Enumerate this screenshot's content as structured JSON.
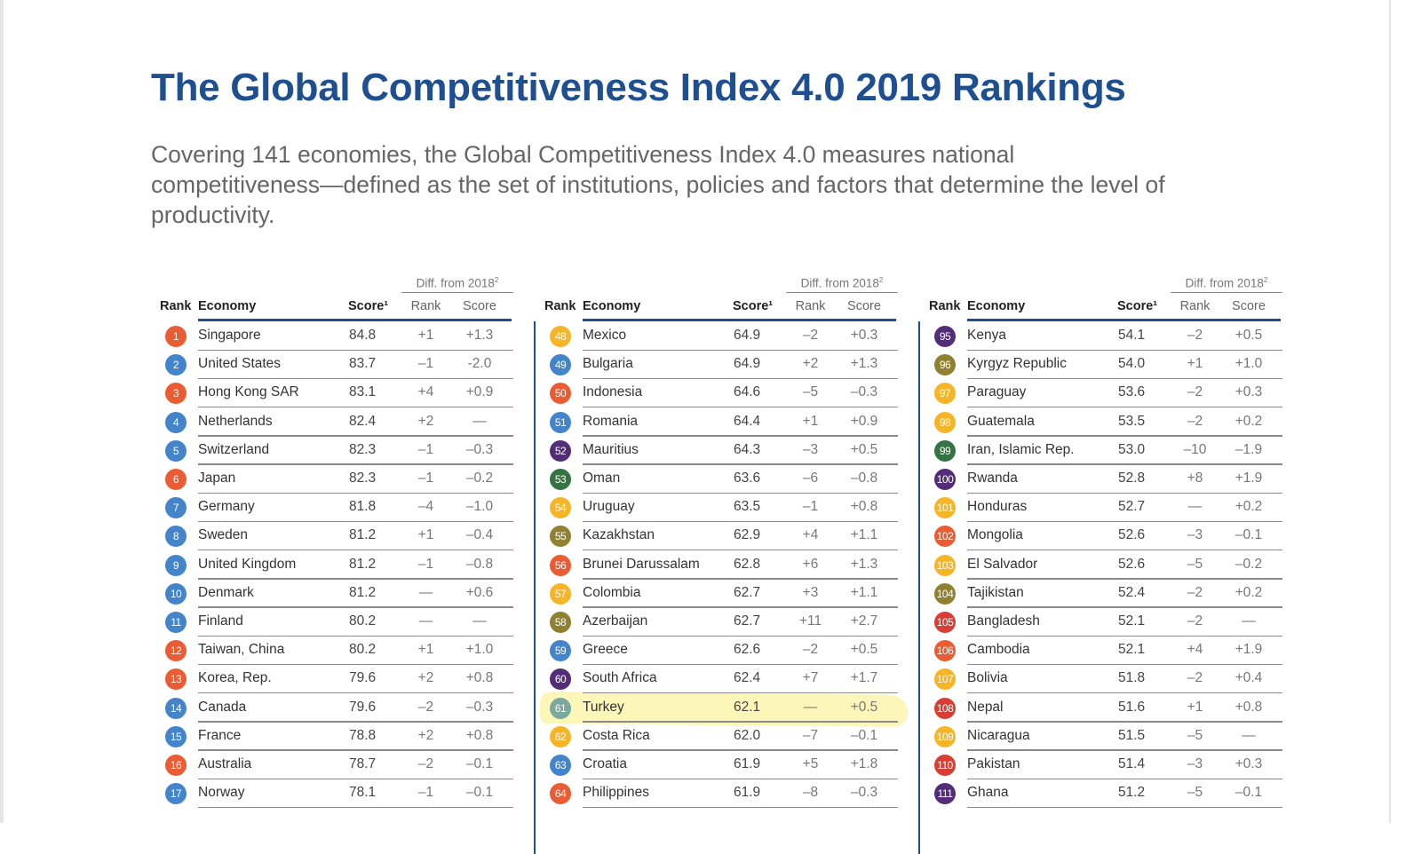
{
  "title": "The Global Competitiveness Index 4.0 2019 Rankings",
  "intro": "Covering 141 economies, the Global Competitiveness Index 4.0 measures national competitiveness—defined as the set of institutions, policies and factors that determine the level of productivity.",
  "headers": {
    "diff": "Diff. from 2018",
    "diff_sup": "2",
    "rank": "Rank",
    "economy": "Economy",
    "score": "Score¹",
    "diff_rank": "Rank",
    "diff_score": "Score"
  },
  "palette": {
    "orange": "#e8542a",
    "blue": "#3b7ec8",
    "yellow": "#f6b21b",
    "purple": "#4a2270",
    "green": "#2b6d38",
    "olive": "#8a7b26",
    "red": "#d8342a",
    "teal": "#76a49c",
    "title": "#1d4f91",
    "highlight": "#fbf3a2"
  },
  "highlighted_economy": "Turkey",
  "columns": [
    [
      {
        "rank": "1",
        "economy": "Singapore",
        "score": "84.8",
        "rank_diff": "+1",
        "score_diff": "+1.3",
        "color": "orange"
      },
      {
        "rank": "2",
        "economy": "United States",
        "score": "83.7",
        "rank_diff": "–1",
        "score_diff": "-2.0",
        "color": "blue"
      },
      {
        "rank": "3",
        "economy": "Hong Kong SAR",
        "score": "83.1",
        "rank_diff": "+4",
        "score_diff": "+0.9",
        "color": "orange"
      },
      {
        "rank": "4",
        "economy": "Netherlands",
        "score": "82.4",
        "rank_diff": "+2",
        "score_diff": "—",
        "color": "blue"
      },
      {
        "rank": "5",
        "economy": "Switzerland",
        "score": "82.3",
        "rank_diff": "–1",
        "score_diff": "–0.3",
        "color": "blue"
      },
      {
        "rank": "6",
        "economy": "Japan",
        "score": "82.3",
        "rank_diff": "–1",
        "score_diff": "–0.2",
        "color": "orange"
      },
      {
        "rank": "7",
        "economy": "Germany",
        "score": "81.8",
        "rank_diff": "–4",
        "score_diff": "–1.0",
        "color": "blue"
      },
      {
        "rank": "8",
        "economy": "Sweden",
        "score": "81.2",
        "rank_diff": "+1",
        "score_diff": "–0.4",
        "color": "blue"
      },
      {
        "rank": "9",
        "economy": "United Kingdom",
        "score": "81.2",
        "rank_diff": "–1",
        "score_diff": "–0.8",
        "color": "blue"
      },
      {
        "rank": "10",
        "economy": "Denmark",
        "score": "81.2",
        "rank_diff": "—",
        "score_diff": "+0.6",
        "color": "blue"
      },
      {
        "rank": "11",
        "economy": "Finland",
        "score": "80.2",
        "rank_diff": "—",
        "score_diff": "—",
        "color": "blue"
      },
      {
        "rank": "12",
        "economy": "Taiwan, China",
        "score": "80.2",
        "rank_diff": "+1",
        "score_diff": "+1.0",
        "color": "orange"
      },
      {
        "rank": "13",
        "economy": "Korea, Rep.",
        "score": "79.6",
        "rank_diff": "+2",
        "score_diff": "+0.8",
        "color": "orange"
      },
      {
        "rank": "14",
        "economy": "Canada",
        "score": "79.6",
        "rank_diff": "–2",
        "score_diff": "–0.3",
        "color": "blue"
      },
      {
        "rank": "15",
        "economy": "France",
        "score": "78.8",
        "rank_diff": "+2",
        "score_diff": "+0.8",
        "color": "blue"
      },
      {
        "rank": "16",
        "economy": "Australia",
        "score": "78.7",
        "rank_diff": "–2",
        "score_diff": "–0.1",
        "color": "orange"
      },
      {
        "rank": "17",
        "economy": "Norway",
        "score": "78.1",
        "rank_diff": "–1",
        "score_diff": "–0.1",
        "color": "blue"
      }
    ],
    [
      {
        "rank": "48",
        "economy": "Mexico",
        "score": "64.9",
        "rank_diff": "–2",
        "score_diff": "+0.3",
        "color": "yellow"
      },
      {
        "rank": "49",
        "economy": "Bulgaria",
        "score": "64.9",
        "rank_diff": "+2",
        "score_diff": "+1.3",
        "color": "blue"
      },
      {
        "rank": "50",
        "economy": "Indonesia",
        "score": "64.6",
        "rank_diff": "–5",
        "score_diff": "–0.3",
        "color": "orange"
      },
      {
        "rank": "51",
        "economy": "Romania",
        "score": "64.4",
        "rank_diff": "+1",
        "score_diff": "+0.9",
        "color": "blue"
      },
      {
        "rank": "52",
        "economy": "Mauritius",
        "score": "64.3",
        "rank_diff": "–3",
        "score_diff": "+0.5",
        "color": "purple"
      },
      {
        "rank": "53",
        "economy": "Oman",
        "score": "63.6",
        "rank_diff": "–6",
        "score_diff": "–0.8",
        "color": "green"
      },
      {
        "rank": "54",
        "economy": "Uruguay",
        "score": "63.5",
        "rank_diff": "–1",
        "score_diff": "+0.8",
        "color": "yellow"
      },
      {
        "rank": "55",
        "economy": "Kazakhstan",
        "score": "62.9",
        "rank_diff": "+4",
        "score_diff": "+1.1",
        "color": "olive"
      },
      {
        "rank": "56",
        "economy": "Brunei Darussalam",
        "score": "62.8",
        "rank_diff": "+6",
        "score_diff": "+1.3",
        "color": "orange"
      },
      {
        "rank": "57",
        "economy": "Colombia",
        "score": "62.7",
        "rank_diff": "+3",
        "score_diff": "+1.1",
        "color": "yellow"
      },
      {
        "rank": "58",
        "economy": "Azerbaijan",
        "score": "62.7",
        "rank_diff": "+11",
        "score_diff": "+2.7",
        "color": "olive"
      },
      {
        "rank": "59",
        "economy": "Greece",
        "score": "62.6",
        "rank_diff": "–2",
        "score_diff": "+0.5",
        "color": "blue"
      },
      {
        "rank": "60",
        "economy": "South Africa",
        "score": "62.4",
        "rank_diff": "+7",
        "score_diff": "+1.7",
        "color": "purple"
      },
      {
        "rank": "61",
        "economy": "Turkey",
        "score": "62.1",
        "rank_diff": "—",
        "score_diff": "+0.5",
        "color": "teal"
      },
      {
        "rank": "62",
        "economy": "Costa Rica",
        "score": "62.0",
        "rank_diff": "–7",
        "score_diff": "–0.1",
        "color": "yellow"
      },
      {
        "rank": "63",
        "economy": "Croatia",
        "score": "61.9",
        "rank_diff": "+5",
        "score_diff": "+1.8",
        "color": "blue"
      },
      {
        "rank": "64",
        "economy": "Philippines",
        "score": "61.9",
        "rank_diff": "–8",
        "score_diff": "–0.3",
        "color": "orange"
      }
    ],
    [
      {
        "rank": "95",
        "economy": "Kenya",
        "score": "54.1",
        "rank_diff": "–2",
        "score_diff": "+0.5",
        "color": "purple"
      },
      {
        "rank": "96",
        "economy": "Kyrgyz Republic",
        "score": "54.0",
        "rank_diff": "+1",
        "score_diff": "+1.0",
        "color": "olive"
      },
      {
        "rank": "97",
        "economy": "Paraguay",
        "score": "53.6",
        "rank_diff": "–2",
        "score_diff": "+0.3",
        "color": "yellow"
      },
      {
        "rank": "98",
        "economy": "Guatemala",
        "score": "53.5",
        "rank_diff": "–2",
        "score_diff": "+0.2",
        "color": "yellow"
      },
      {
        "rank": "99",
        "economy": "Iran, Islamic Rep.",
        "score": "53.0",
        "rank_diff": "–10",
        "score_diff": "–1.9",
        "color": "green"
      },
      {
        "rank": "100",
        "economy": "Rwanda",
        "score": "52.8",
        "rank_diff": "+8",
        "score_diff": "+1.9",
        "color": "purple"
      },
      {
        "rank": "101",
        "economy": "Honduras",
        "score": "52.7",
        "rank_diff": "—",
        "score_diff": "+0.2",
        "color": "yellow"
      },
      {
        "rank": "102",
        "economy": "Mongolia",
        "score": "52.6",
        "rank_diff": "–3",
        "score_diff": "–0.1",
        "color": "orange"
      },
      {
        "rank": "103",
        "economy": "El Salvador",
        "score": "52.6",
        "rank_diff": "–5",
        "score_diff": "–0.2",
        "color": "yellow"
      },
      {
        "rank": "104",
        "economy": "Tajikistan",
        "score": "52.4",
        "rank_diff": "–2",
        "score_diff": "+0.2",
        "color": "olive"
      },
      {
        "rank": "105",
        "economy": "Bangladesh",
        "score": "52.1",
        "rank_diff": "–2",
        "score_diff": "—",
        "color": "red"
      },
      {
        "rank": "106",
        "economy": "Cambodia",
        "score": "52.1",
        "rank_diff": "+4",
        "score_diff": "+1.9",
        "color": "orange"
      },
      {
        "rank": "107",
        "economy": "Bolivia",
        "score": "51.8",
        "rank_diff": "–2",
        "score_diff": "+0.4",
        "color": "yellow"
      },
      {
        "rank": "108",
        "economy": "Nepal",
        "score": "51.6",
        "rank_diff": "+1",
        "score_diff": "+0.8",
        "color": "red"
      },
      {
        "rank": "109",
        "economy": "Nicaragua",
        "score": "51.5",
        "rank_diff": "–5",
        "score_diff": "—",
        "color": "yellow"
      },
      {
        "rank": "110",
        "economy": "Pakistan",
        "score": "51.4",
        "rank_diff": "–3",
        "score_diff": "+0.3",
        "color": "red"
      },
      {
        "rank": "111",
        "economy": "Ghana",
        "score": "51.2",
        "rank_diff": "–5",
        "score_diff": "–0.1",
        "color": "purple"
      }
    ]
  ]
}
